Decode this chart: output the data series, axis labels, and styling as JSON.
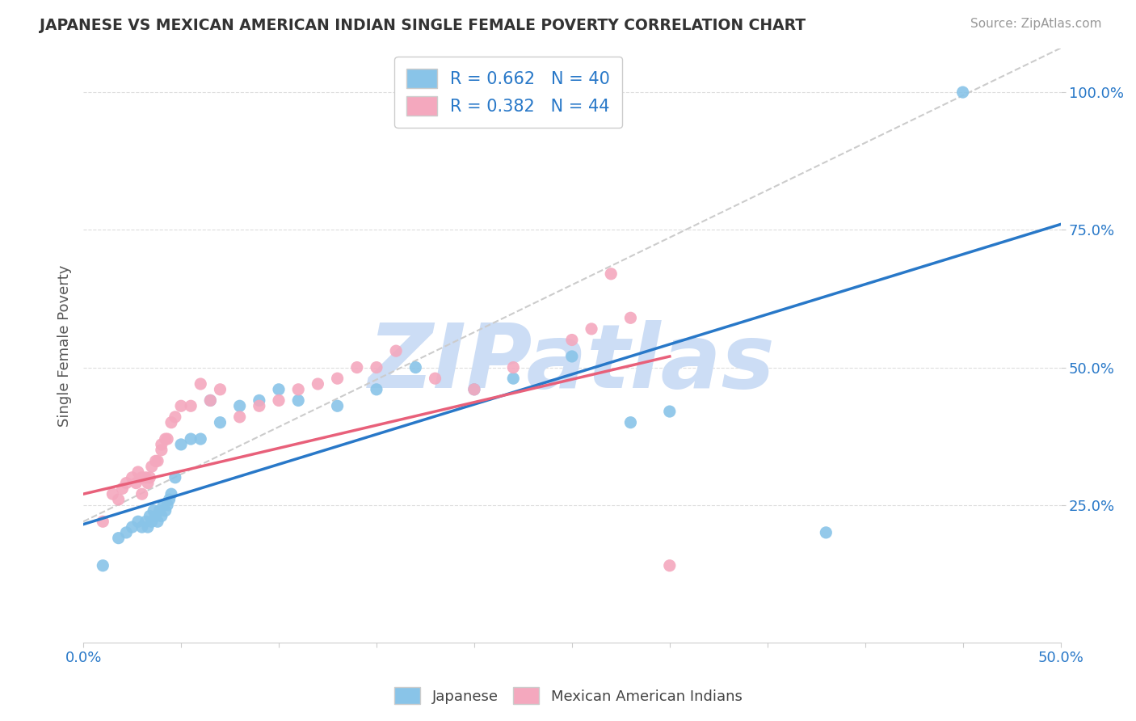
{
  "title": "JAPANESE VS MEXICAN AMERICAN INDIAN SINGLE FEMALE POVERTY CORRELATION CHART",
  "source": "Source: ZipAtlas.com",
  "ylabel": "Single Female Poverty",
  "xlim": [
    0.0,
    0.5
  ],
  "ylim": [
    0.0,
    1.08
  ],
  "yticks": [
    0.25,
    0.5,
    0.75,
    1.0
  ],
  "ytick_labels": [
    "25.0%",
    "50.0%",
    "75.0%",
    "100.0%"
  ],
  "xticks": [
    0.0,
    0.05,
    0.1,
    0.15,
    0.2,
    0.25,
    0.3,
    0.35,
    0.4,
    0.45,
    0.5
  ],
  "xtick_labels": [
    "0.0%",
    "",
    "",
    "",
    "",
    "",
    "",
    "",
    "",
    "",
    "50.0%"
  ],
  "R_japanese": 0.662,
  "N_japanese": 40,
  "R_mexican": 0.382,
  "N_mexican": 44,
  "color_japanese": "#89c4e8",
  "color_mexican": "#f4a8be",
  "color_japanese_line": "#2878c8",
  "color_mexican_line": "#e8607a",
  "color_ref_line": "#cccccc",
  "watermark": "ZIPatlas",
  "watermark_color": "#ccddf5",
  "japanese_x": [
    0.01,
    0.018,
    0.022,
    0.025,
    0.028,
    0.03,
    0.032,
    0.033,
    0.034,
    0.035,
    0.036,
    0.037,
    0.038,
    0.039,
    0.04,
    0.041,
    0.042,
    0.043,
    0.044,
    0.045,
    0.047,
    0.05,
    0.055,
    0.06,
    0.065,
    0.07,
    0.08,
    0.09,
    0.1,
    0.11,
    0.13,
    0.15,
    0.17,
    0.2,
    0.22,
    0.25,
    0.28,
    0.3,
    0.38,
    0.45
  ],
  "japanese_y": [
    0.14,
    0.19,
    0.2,
    0.21,
    0.22,
    0.21,
    0.22,
    0.21,
    0.23,
    0.22,
    0.24,
    0.23,
    0.22,
    0.24,
    0.23,
    0.25,
    0.24,
    0.25,
    0.26,
    0.27,
    0.3,
    0.36,
    0.37,
    0.37,
    0.44,
    0.4,
    0.43,
    0.44,
    0.46,
    0.44,
    0.43,
    0.46,
    0.5,
    0.46,
    0.48,
    0.52,
    0.4,
    0.42,
    0.2,
    1.0
  ],
  "mexican_x": [
    0.01,
    0.015,
    0.018,
    0.02,
    0.022,
    0.025,
    0.027,
    0.028,
    0.03,
    0.03,
    0.032,
    0.033,
    0.034,
    0.035,
    0.037,
    0.038,
    0.04,
    0.04,
    0.042,
    0.043,
    0.045,
    0.047,
    0.05,
    0.055,
    0.06,
    0.065,
    0.07,
    0.08,
    0.09,
    0.1,
    0.11,
    0.12,
    0.13,
    0.14,
    0.15,
    0.16,
    0.18,
    0.2,
    0.22,
    0.25,
    0.26,
    0.27,
    0.28,
    0.3
  ],
  "mexican_y": [
    0.22,
    0.27,
    0.26,
    0.28,
    0.29,
    0.3,
    0.29,
    0.31,
    0.27,
    0.3,
    0.3,
    0.29,
    0.3,
    0.32,
    0.33,
    0.33,
    0.35,
    0.36,
    0.37,
    0.37,
    0.4,
    0.41,
    0.43,
    0.43,
    0.47,
    0.44,
    0.46,
    0.41,
    0.43,
    0.44,
    0.46,
    0.47,
    0.48,
    0.5,
    0.5,
    0.53,
    0.48,
    0.46,
    0.5,
    0.55,
    0.57,
    0.67,
    0.59,
    0.14
  ],
  "ref_line_x": [
    0.0,
    0.5
  ],
  "ref_line_y": [
    0.22,
    1.08
  ],
  "blue_line_x": [
    0.0,
    0.5
  ],
  "blue_line_y": [
    0.215,
    0.76
  ],
  "pink_line_x": [
    0.0,
    0.3
  ],
  "pink_line_y": [
    0.27,
    0.52
  ]
}
